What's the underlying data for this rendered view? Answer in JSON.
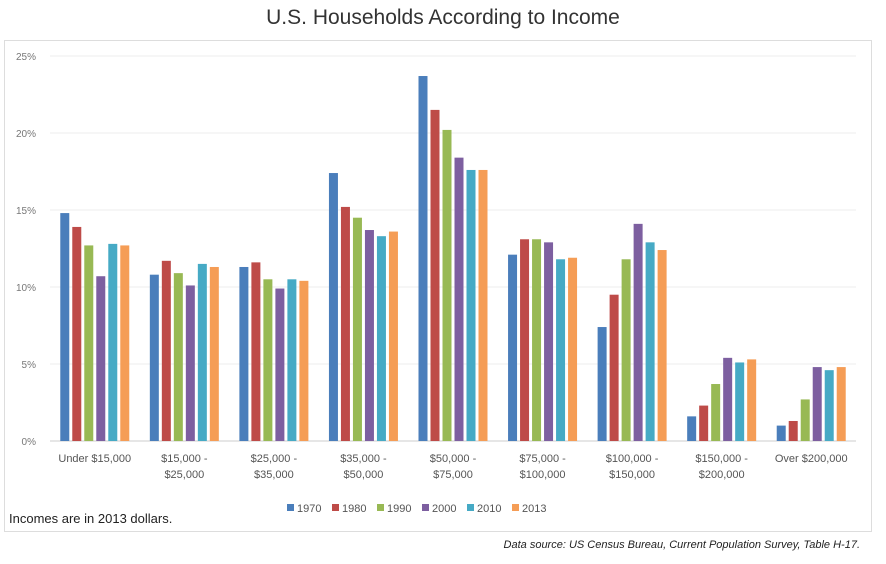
{
  "chart_data": {
    "type": "bar",
    "title": "U.S. Households According to Income",
    "xlabel": "",
    "ylabel": "",
    "ylim": [
      0,
      25
    ],
    "yticks": [
      "0%",
      "5%",
      "10%",
      "15%",
      "20%",
      "25%"
    ],
    "grid": true,
    "legend_position": "bottom",
    "categories": [
      [
        "Under $15,000"
      ],
      [
        "$15,000 -",
        "$25,000"
      ],
      [
        "$25,000 -",
        "$35,000"
      ],
      [
        "$35,000 -",
        "$50,000"
      ],
      [
        "$50,000 -",
        "$75,000"
      ],
      [
        "$75,000 -",
        "$100,000"
      ],
      [
        "$100,000 -",
        "$150,000"
      ],
      [
        "$150,000 -",
        "$200,000"
      ],
      [
        "Over $200,000"
      ]
    ],
    "series": [
      {
        "name": "1970",
        "color": "#4a7ebb",
        "values": [
          14.8,
          10.8,
          11.3,
          17.4,
          23.7,
          12.1,
          7.4,
          1.6,
          1.0
        ]
      },
      {
        "name": "1980",
        "color": "#be4b48",
        "values": [
          13.9,
          11.7,
          11.6,
          15.2,
          21.5,
          13.1,
          9.5,
          2.3,
          1.3
        ]
      },
      {
        "name": "1990",
        "color": "#98b954",
        "values": [
          12.7,
          10.9,
          10.5,
          14.5,
          20.2,
          13.1,
          11.8,
          3.7,
          2.7
        ]
      },
      {
        "name": "2000",
        "color": "#7d5fa0",
        "values": [
          10.7,
          10.1,
          9.9,
          13.7,
          18.4,
          12.9,
          14.1,
          5.4,
          4.8
        ]
      },
      {
        "name": "2010",
        "color": "#46aac5",
        "values": [
          12.8,
          11.5,
          10.5,
          13.3,
          17.6,
          11.8,
          12.9,
          5.1,
          4.6
        ]
      },
      {
        "name": "2013",
        "color": "#f59d56",
        "values": [
          12.7,
          11.3,
          10.4,
          13.6,
          17.6,
          11.9,
          12.4,
          5.3,
          4.8
        ]
      }
    ]
  },
  "note": "Incomes are in 2013 dollars.",
  "source": "Data source: US Census Bureau, Current Population Survey, Table H-17."
}
